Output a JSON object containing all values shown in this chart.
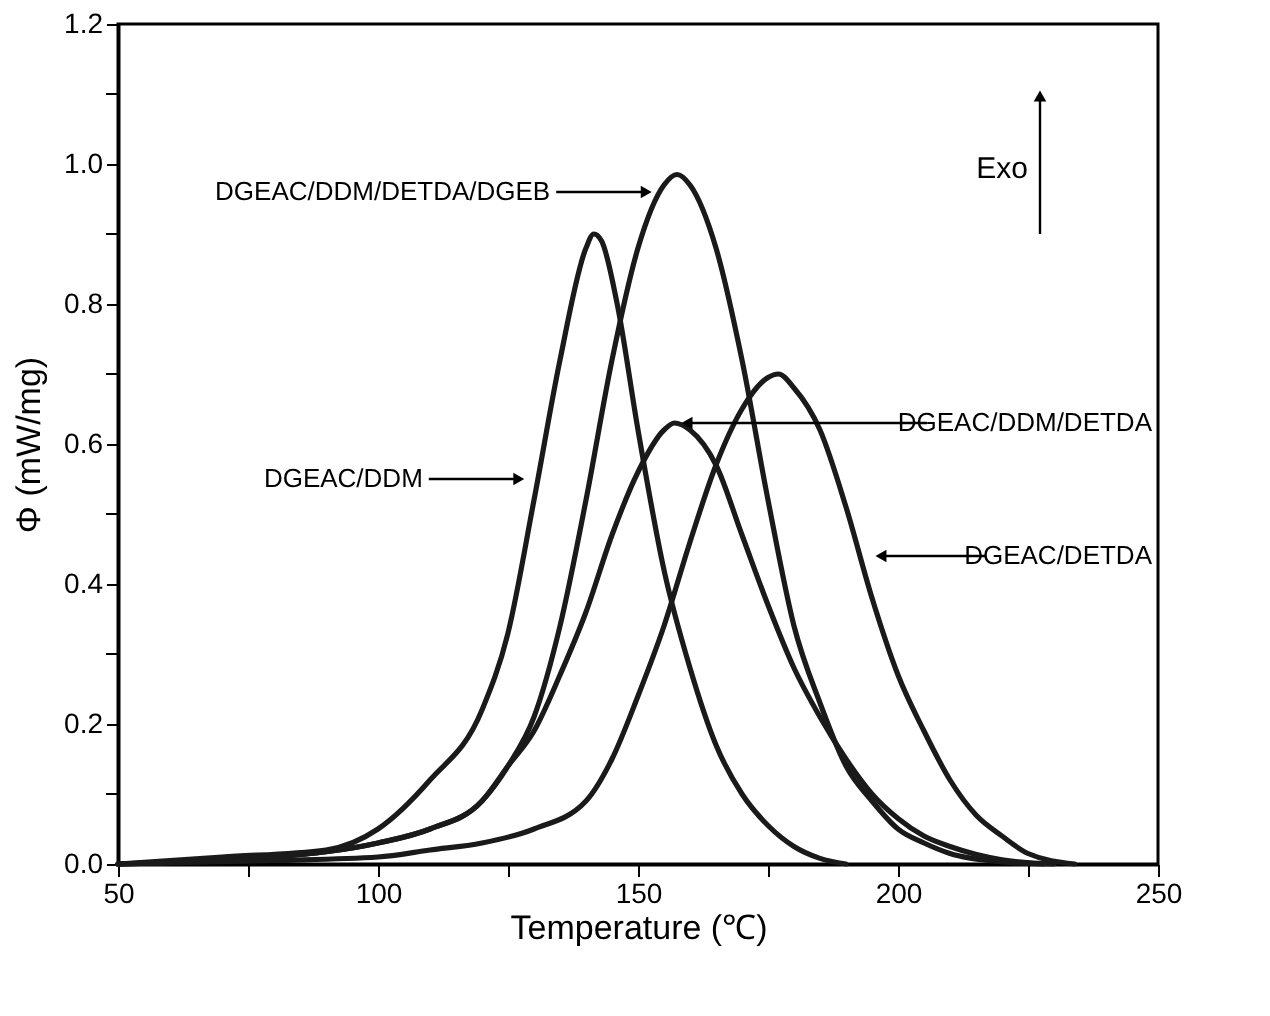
{
  "chart_data": {
    "type": "line",
    "xlabel": "Temperature (℃)",
    "ylabel": "Φ (mW/mg)",
    "xlim": [
      50,
      250
    ],
    "ylim": [
      0,
      1.2
    ],
    "xticks": [
      50,
      {
        "value": 75,
        "label": null
      },
      100,
      {
        "value": 125,
        "label": null
      },
      150,
      {
        "value": 175,
        "label": null
      },
      200,
      {
        "value": 225,
        "label": null
      },
      250
    ],
    "yticks": [
      {
        "value": 0,
        "label": "0.0"
      },
      {
        "value": 0.1,
        "label": null
      },
      {
        "value": 0.2,
        "label": "0.2"
      },
      {
        "value": 0.3,
        "label": null
      },
      {
        "value": 0.4,
        "label": "0.4"
      },
      {
        "value": 0.5,
        "label": null
      },
      {
        "value": 0.6,
        "label": "0.6"
      },
      {
        "value": 0.7,
        "label": null
      },
      {
        "value": 0.8,
        "label": "0.8"
      },
      {
        "value": 0.9,
        "label": null
      },
      {
        "value": 1.0,
        "label": "1.0"
      },
      {
        "value": 1.1,
        "label": null
      },
      {
        "value": 1.2,
        "label": "1.2"
      }
    ],
    "grid": false,
    "marker": "none",
    "line_style": "solid",
    "series": [
      {
        "color": "#1a1a1a",
        "x": [
          50,
          70,
          90,
          100,
          110,
          120,
          125,
          130,
          135,
          140,
          141.5,
          143,
          146,
          150,
          155,
          160,
          165,
          170,
          175,
          180,
          185,
          190
        ],
        "values": [
          0,
          0.01,
          0.02,
          0.05,
          0.12,
          0.22,
          0.33,
          0.52,
          0.72,
          0.88,
          0.9,
          0.89,
          0.8,
          0.62,
          0.42,
          0.28,
          0.17,
          0.1,
          0.055,
          0.025,
          0.008,
          0
        ]
      },
      {
        "color": "#1a1a1a",
        "x": [
          50,
          80,
          100,
          110,
          120,
          125,
          130,
          135,
          140,
          145,
          150,
          155,
          157.5,
          160,
          165,
          170,
          175,
          180,
          185,
          190,
          195,
          200,
          205,
          210,
          220,
          228
        ],
        "values": [
          0,
          0.01,
          0.03,
          0.05,
          0.09,
          0.14,
          0.21,
          0.34,
          0.52,
          0.72,
          0.88,
          0.97,
          0.985,
          0.97,
          0.88,
          0.72,
          0.52,
          0.34,
          0.23,
          0.14,
          0.09,
          0.05,
          0.03,
          0.015,
          0.003,
          0
        ]
      },
      {
        "color": "#1a1a1a",
        "x": [
          50,
          80,
          100,
          110,
          120,
          125,
          130,
          135,
          140,
          145,
          150,
          155,
          157,
          160,
          165,
          170,
          175,
          180,
          185,
          190,
          195,
          200,
          205,
          210,
          220,
          230
        ],
        "values": [
          0,
          0.01,
          0.03,
          0.05,
          0.09,
          0.14,
          0.19,
          0.27,
          0.36,
          0.47,
          0.56,
          0.62,
          0.63,
          0.62,
          0.57,
          0.47,
          0.37,
          0.28,
          0.21,
          0.15,
          0.1,
          0.065,
          0.04,
          0.025,
          0.006,
          0
        ]
      },
      {
        "color": "#1a1a1a",
        "x": [
          50,
          80,
          100,
          110,
          120,
          130,
          140,
          145,
          150,
          155,
          160,
          165,
          170,
          175,
          177,
          180,
          185,
          190,
          195,
          200,
          205,
          210,
          215,
          220,
          225,
          234
        ],
        "values": [
          0,
          0.005,
          0.01,
          0.02,
          0.03,
          0.05,
          0.09,
          0.15,
          0.24,
          0.34,
          0.46,
          0.57,
          0.65,
          0.695,
          0.7,
          0.68,
          0.62,
          0.51,
          0.38,
          0.27,
          0.19,
          0.12,
          0.07,
          0.04,
          0.015,
          0
        ]
      }
    ],
    "annotations": [
      {
        "text": "DGEAC/DDM/DETDA/DGEB",
        "x": 153.5,
        "y": 0.96
      },
      {
        "text": "DGEAC/DDM",
        "x": 129,
        "y": 0.55
      },
      {
        "text": "DGEAC/DDM/DETDA",
        "x": 157.5,
        "y": 0.63
      },
      {
        "text": "DGEAC/DETDA",
        "x": 194.8,
        "y": 0.44
      },
      "Exo"
    ]
  }
}
